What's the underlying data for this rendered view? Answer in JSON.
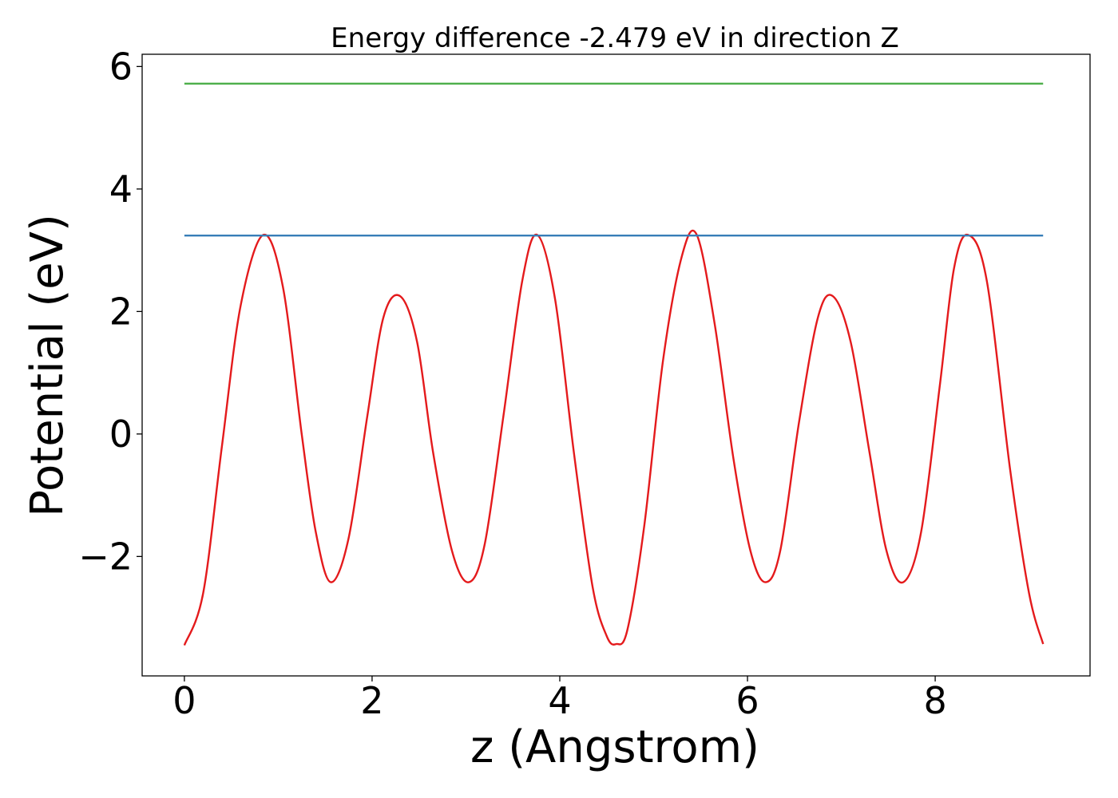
{
  "chart_data": {
    "type": "line",
    "title": "Energy difference -2.479 eV in direction Z",
    "xlabel": "z (Angstrom)",
    "ylabel": "Potential (eV)",
    "xlim": [
      -0.45,
      9.65
    ],
    "ylim": [
      -3.95,
      6.2
    ],
    "xticks": [
      0,
      2,
      4,
      6,
      8
    ],
    "xtick_labels": [
      "0",
      "2",
      "4",
      "6",
      "8"
    ],
    "yticks": [
      -2,
      0,
      2,
      4,
      6
    ],
    "ytick_labels": [
      "−2",
      "0",
      "2",
      "4",
      "6"
    ],
    "grid": false,
    "legend": "none",
    "series": [
      {
        "color": "#e41a1c",
        "x": [
          0,
          0.2,
          0.4,
          0.6,
          0.84,
          1.05,
          1.25,
          1.4,
          1.56,
          1.75,
          1.95,
          2.12,
          2.3,
          2.48,
          2.65,
          2.85,
          3.03,
          3.2,
          3.4,
          3.6,
          3.76,
          3.95,
          4.15,
          4.35,
          4.5,
          4.6,
          4.72,
          4.9,
          5.1,
          5.3,
          5.46,
          5.65,
          5.85,
          6.03,
          6.19,
          6.35,
          6.55,
          6.75,
          6.91,
          7.1,
          7.3,
          7.48,
          7.66,
          7.85,
          8.05,
          8.2,
          8.35,
          8.55,
          8.8,
          9.0,
          9.15
        ],
        "y": [
          -3.45,
          -2.6,
          -0.2,
          2.1,
          3.25,
          2.4,
          0.0,
          -1.6,
          -2.42,
          -1.7,
          0.3,
          1.9,
          2.25,
          1.5,
          -0.3,
          -1.9,
          -2.42,
          -1.8,
          0.3,
          2.5,
          3.25,
          2.2,
          -0.3,
          -2.5,
          -3.3,
          -3.43,
          -3.2,
          -1.5,
          1.2,
          2.9,
          3.25,
          1.8,
          -0.4,
          -1.9,
          -2.42,
          -1.9,
          0.2,
          1.9,
          2.25,
          1.5,
          -0.3,
          -1.9,
          -2.42,
          -1.6,
          0.8,
          2.7,
          3.25,
          2.5,
          -0.6,
          -2.6,
          -3.43
        ]
      },
      {
        "color": "#377eb8",
        "x": [
          0,
          9.15
        ],
        "y": [
          3.24,
          3.24
        ]
      },
      {
        "color": "#4daf4a",
        "x": [
          0,
          9.15
        ],
        "y": [
          5.72,
          5.72
        ]
      }
    ]
  }
}
